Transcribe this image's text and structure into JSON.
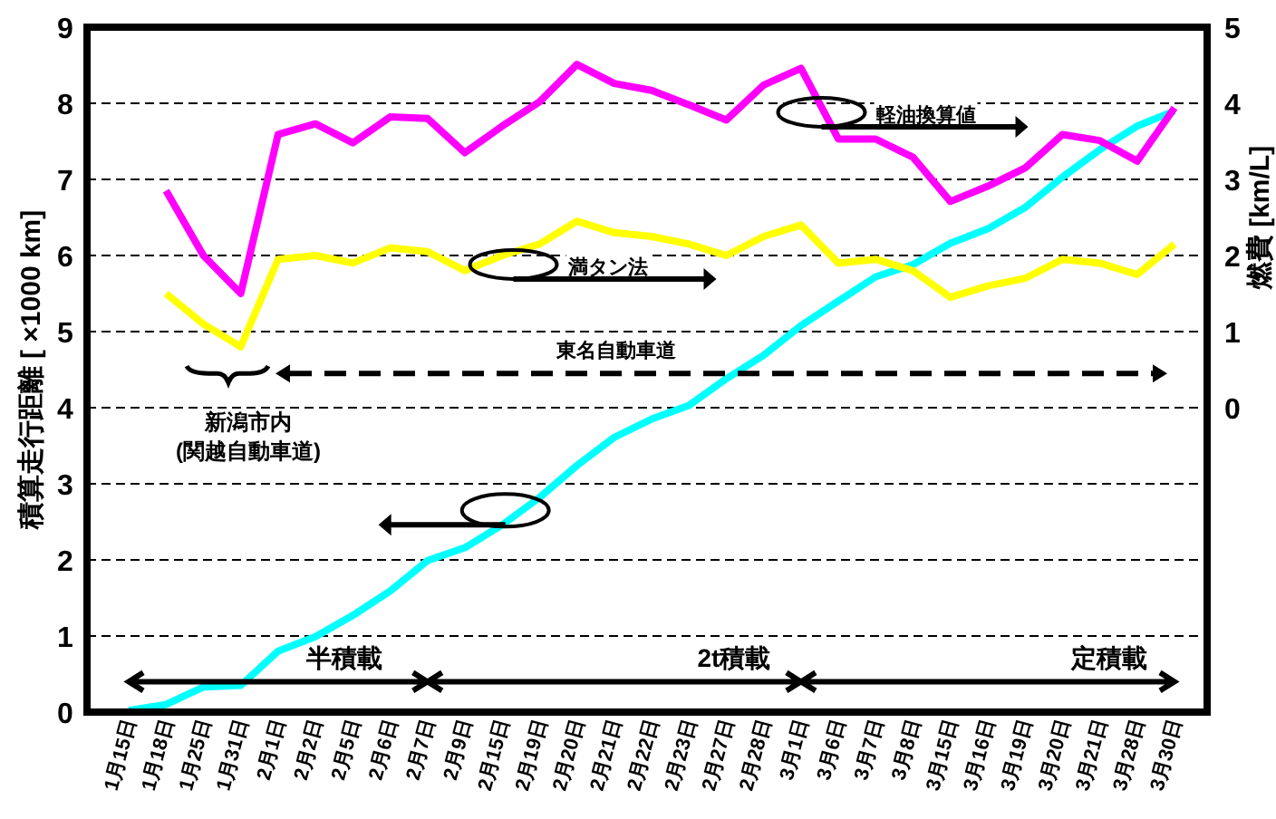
{
  "chart_data": {
    "type": "line",
    "categories": [
      "1月15日",
      "1月18日",
      "1月25日",
      "1月31日",
      "2月1日",
      "2月2日",
      "2月5日",
      "2月6日",
      "2月7日",
      "2月9日",
      "2月15日",
      "2月19日",
      "2月20日",
      "2月21日",
      "2月22日",
      "2月23日",
      "2月27日",
      "2月28日",
      "3月1日",
      "3月6日",
      "3月7日",
      "3月8日",
      "3月15日",
      "3月16日",
      "3月19日",
      "3月20日",
      "3月21日",
      "3月28日",
      "3月30日"
    ],
    "series": [
      {
        "color": "#00ffff",
        "values": [
          0.02,
          0.1,
          0.33,
          0.35,
          0.8,
          0.99,
          1.27,
          1.59,
          1.99,
          2.16,
          2.46,
          2.82,
          3.24,
          3.61,
          3.85,
          4.03,
          4.38,
          4.69,
          5.08,
          5.4,
          5.72,
          5.88,
          6.16,
          6.35,
          6.63,
          7.03,
          7.39,
          7.7,
          7.9
        ]
      },
      {
        "name": "満タン法",
        "axis": "y2",
        "color": "#ffff00",
        "values": [
          null,
          1.5,
          1.1,
          0.8,
          1.95,
          2.0,
          1.9,
          2.1,
          2.05,
          1.8,
          2.0,
          2.15,
          2.45,
          2.3,
          2.25,
          2.15,
          2.0,
          2.25,
          2.4,
          1.9,
          1.95,
          1.8,
          1.45,
          1.6,
          1.7,
          1.95,
          1.9,
          1.75,
          2.15
        ]
      },
      {
        "name": "軽油換算値",
        "axis": "y2",
        "color": "#ff00ff",
        "values": [
          null,
          2.85,
          2.0,
          1.5,
          3.59,
          3.73,
          3.48,
          3.82,
          3.8,
          3.35,
          3.7,
          4.02,
          4.51,
          4.26,
          4.17,
          3.98,
          3.78,
          4.24,
          4.46,
          3.53,
          3.53,
          3.29,
          2.71,
          2.91,
          3.15,
          3.59,
          3.51,
          3.24,
          3.94
        ]
      }
    ],
    "ylabel": "積算走行距離 [ ×1000 km]",
    "y2label": "燃費 [km/L]",
    "ylim": [
      0,
      9
    ],
    "yticks": [
      0,
      1,
      2,
      3,
      4,
      5,
      6,
      7,
      8,
      9
    ],
    "y2lim": [
      -4,
      5
    ],
    "y2ticks": [
      0,
      1,
      2,
      3,
      4,
      5
    ],
    "grid": "y",
    "legend": false,
    "line_style": "solid",
    "marker": "none",
    "annotations": [
      "東名自動車道",
      "新潟市内\n(関越自動車道)",
      "半積載",
      "2t積載",
      "定積載"
    ]
  }
}
